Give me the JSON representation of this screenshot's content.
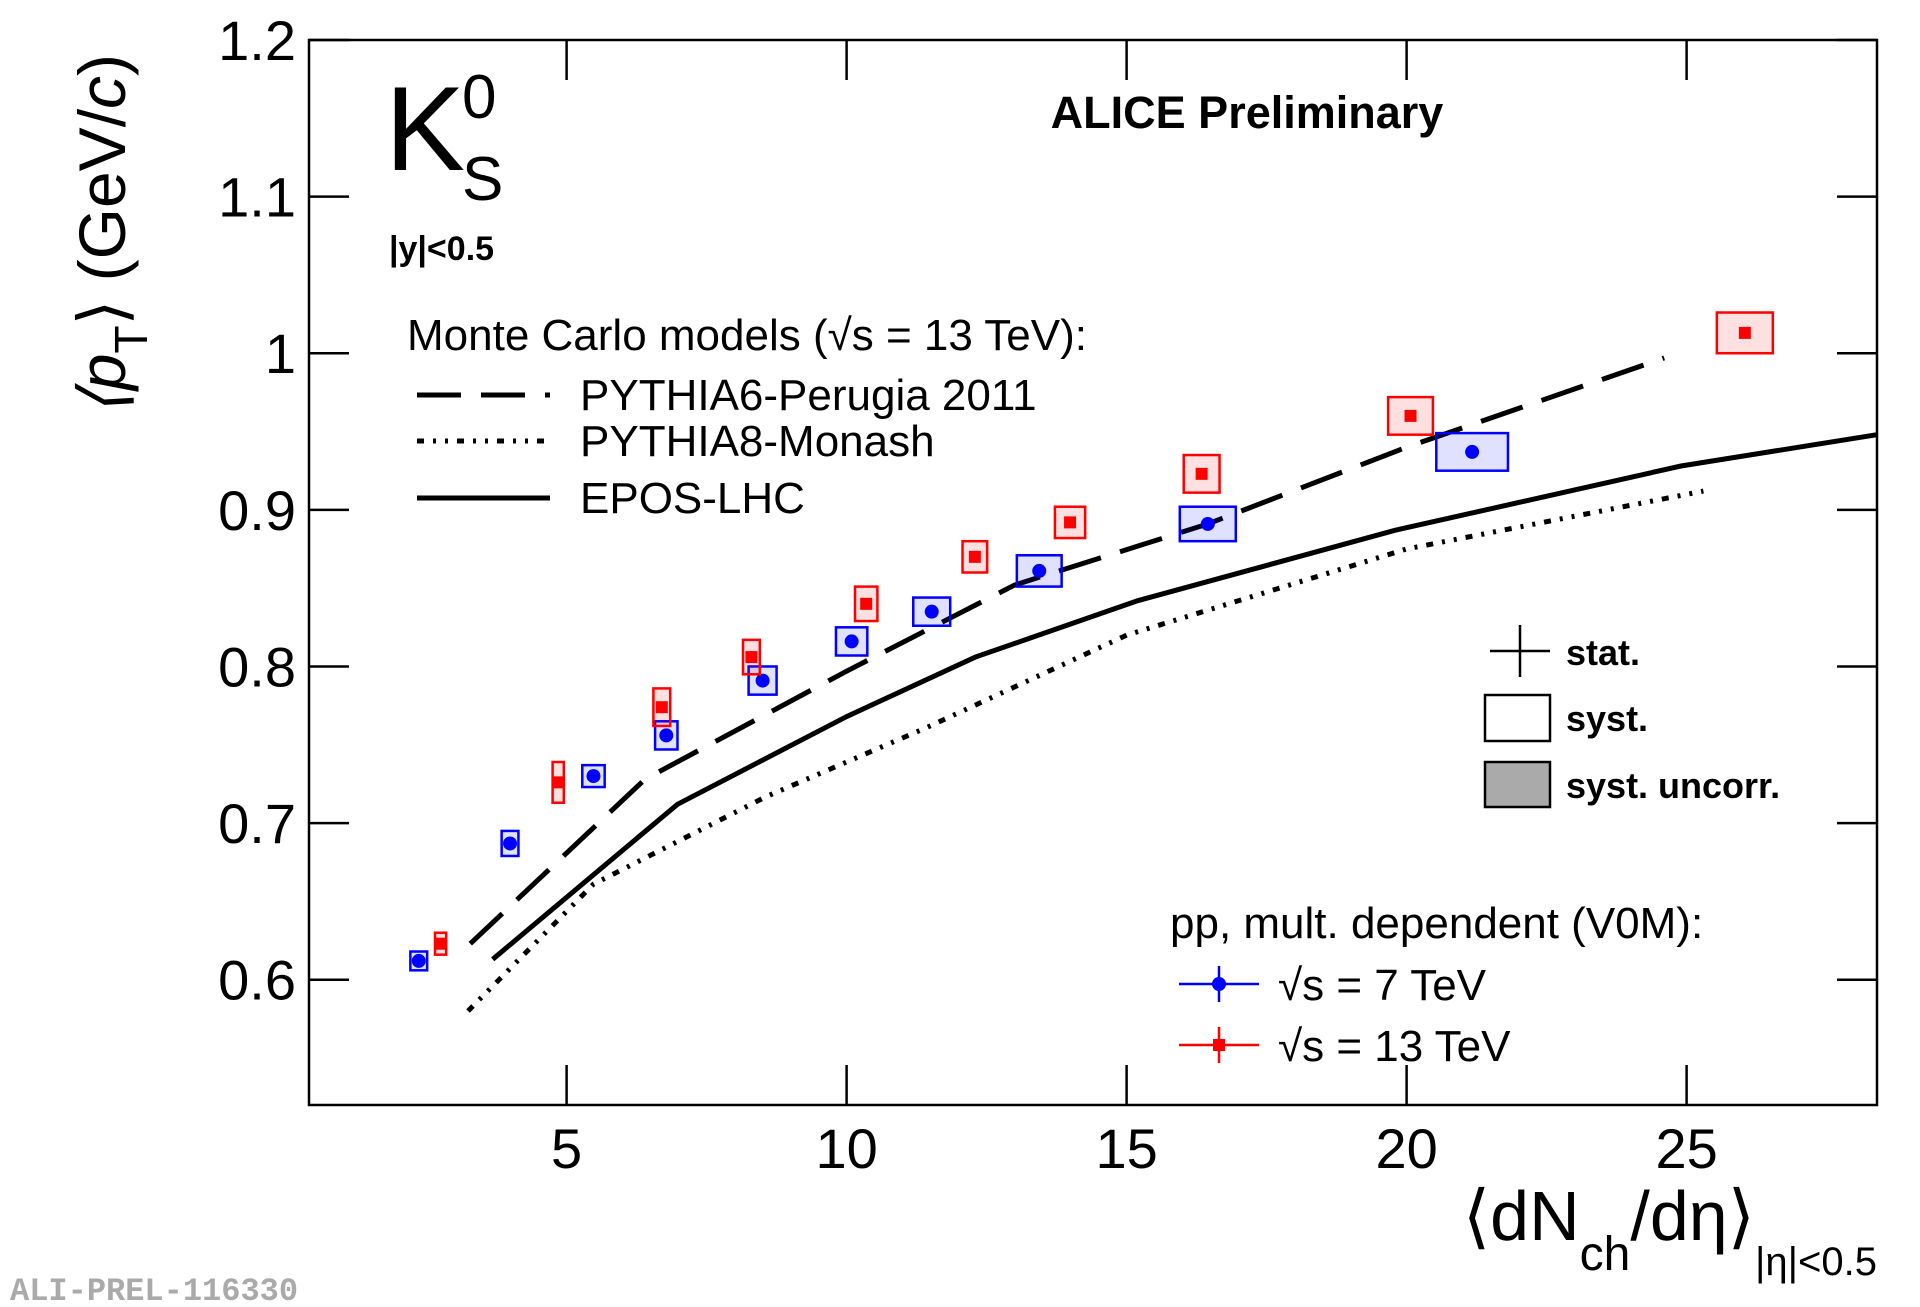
{
  "chart_data": {
    "type": "scatter",
    "title": "ALICE Preliminary",
    "particle": {
      "symbol": "K",
      "sup": "0",
      "sub": "S"
    },
    "rapidity": "|y|<0.5",
    "ylabel": [
      "⟨p",
      "T",
      "⟩ (GeV/",
      "c",
      ")"
    ],
    "xlabel": [
      "⟨dN",
      "ch",
      "/dη⟩",
      "|η|<0.5"
    ],
    "xlim": [
      0.4,
      28.4
    ],
    "xticks": [
      5,
      10,
      15,
      20,
      25
    ],
    "ylim": [
      0.52,
      1.2
    ],
    "yticks": [
      0.6,
      0.7,
      0.8,
      0.9,
      1,
      1.1,
      1.2
    ],
    "models_header": "Monte Carlo models (√s = 13 TeV):",
    "models": [
      {
        "name": "PYTHIA6-Perugia 2011",
        "color": "#000000",
        "line_style": "dashed",
        "x": [
          3.28,
          6.4,
          10,
          13,
          16.45,
          20,
          24.6
        ],
        "values": [
          0.623,
          0.728,
          0.797,
          0.852,
          0.891,
          0.94,
          0.997
        ]
      },
      {
        "name": "PYTHIA8-Monash",
        "color": "#000000",
        "line_style": "dotted",
        "x": [
          3.24,
          5.48,
          8.57,
          11.43,
          15,
          20,
          25.3
        ],
        "values": [
          0.58,
          0.661,
          0.717,
          0.761,
          0.82,
          0.875,
          0.912
        ]
      },
      {
        "name": "EPOS-LHC",
        "color": "#000000",
        "line_style": "solid",
        "x": [
          3.68,
          6.98,
          10,
          12.3,
          15.2,
          19.8,
          24.9,
          28.4
        ],
        "values": [
          0.613,
          0.712,
          0.768,
          0.806,
          0.842,
          0.887,
          0.928,
          0.948
        ]
      }
    ],
    "uncertainty_legend": [
      "stat.",
      "syst.",
      "syst. uncorr."
    ],
    "data_header": "pp, mult. dependent (V0M):",
    "series": [
      {
        "name": "√s = 7 TeV",
        "color": "#0000ff",
        "marker": "circle",
        "x": [
          2.36,
          3.99,
          5.48,
          6.78,
          8.5,
          10.09,
          11.52,
          13.44,
          16.45,
          21.17
        ],
        "values": [
          0.612,
          0.687,
          0.73,
          0.756,
          0.791,
          0.816,
          0.835,
          0.861,
          0.891,
          0.937
        ],
        "xerr_syst": [
          0.15,
          0.15,
          0.2,
          0.2,
          0.25,
          0.28,
          0.33,
          0.4,
          0.5,
          0.64
        ],
        "yerr_syst": [
          0.006,
          0.008,
          0.007,
          0.009,
          0.009,
          0.009,
          0.009,
          0.01,
          0.011,
          0.012
        ]
      },
      {
        "name": "√s = 13 TeV",
        "color": "#ff0000",
        "marker": "square",
        "x": [
          2.75,
          4.85,
          6.7,
          8.3,
          10.35,
          12.29,
          13.99,
          16.34,
          20.07,
          26.04
        ],
        "values": [
          0.623,
          0.726,
          0.774,
          0.806,
          0.84,
          0.87,
          0.892,
          0.923,
          0.96,
          1.013
        ],
        "xerr_syst": [
          0.1,
          0.1,
          0.15,
          0.15,
          0.2,
          0.22,
          0.27,
          0.32,
          0.4,
          0.5
        ],
        "yerr_syst": [
          0.007,
          0.013,
          0.012,
          0.011,
          0.011,
          0.01,
          0.01,
          0.012,
          0.012,
          0.013
        ]
      }
    ],
    "footer": "ALI-PREL-116330"
  }
}
